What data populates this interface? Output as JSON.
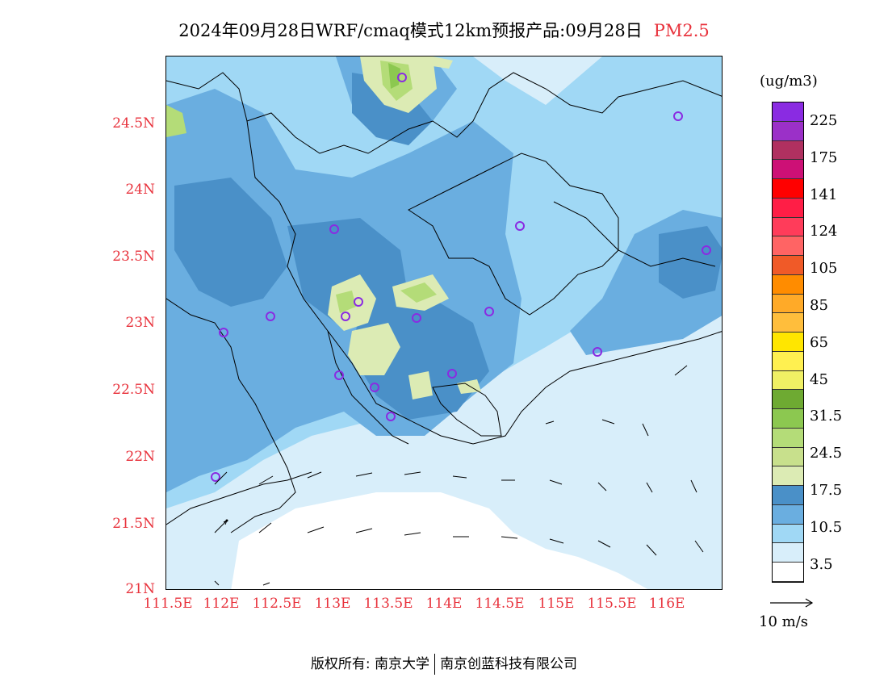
{
  "header": {
    "title": "2024年09月28日WRF/cmaq模式12km预报产品:09月28日",
    "species": "PM2.5"
  },
  "axes": {
    "y_ticks": [
      "21N",
      "21.5N",
      "22N",
      "22.5N",
      "23N",
      "23.5N",
      "24N",
      "24.5N"
    ],
    "x_ticks": [
      "111.5E",
      "112E",
      "112.5E",
      "113E",
      "113.5E",
      "114E",
      "114.5E",
      "115E",
      "115.5E",
      "116E"
    ]
  },
  "legend": {
    "unit": "(ug/m3)",
    "labels": [
      "225",
      "175",
      "141",
      "124",
      "105",
      "85",
      "65",
      "45",
      "31.5",
      "24.5",
      "17.5",
      "10.5",
      "3.5"
    ],
    "colors": [
      "#8a2be2",
      "#9b30c8",
      "#b03060",
      "#cd1076",
      "#ff0000",
      "#ff1e46",
      "#ff3c5a",
      "#ff6464",
      "#f05a28",
      "#ff8c00",
      "#ffaa28",
      "#ffbe3c",
      "#ffe600",
      "#fff050",
      "#f0f064",
      "#6eaa32",
      "#8cc850",
      "#b4dc78",
      "#c8e08c",
      "#dcebb4",
      "#4a90c8",
      "#6aaee0",
      "#a0d8f5",
      "#d8eefa",
      "#ffffff"
    ]
  },
  "wind_reference": {
    "label": "10 m/s"
  },
  "footer": {
    "copyright": "版权所有: 南京大学",
    "company": "南京创蓝科技有限公司"
  }
}
